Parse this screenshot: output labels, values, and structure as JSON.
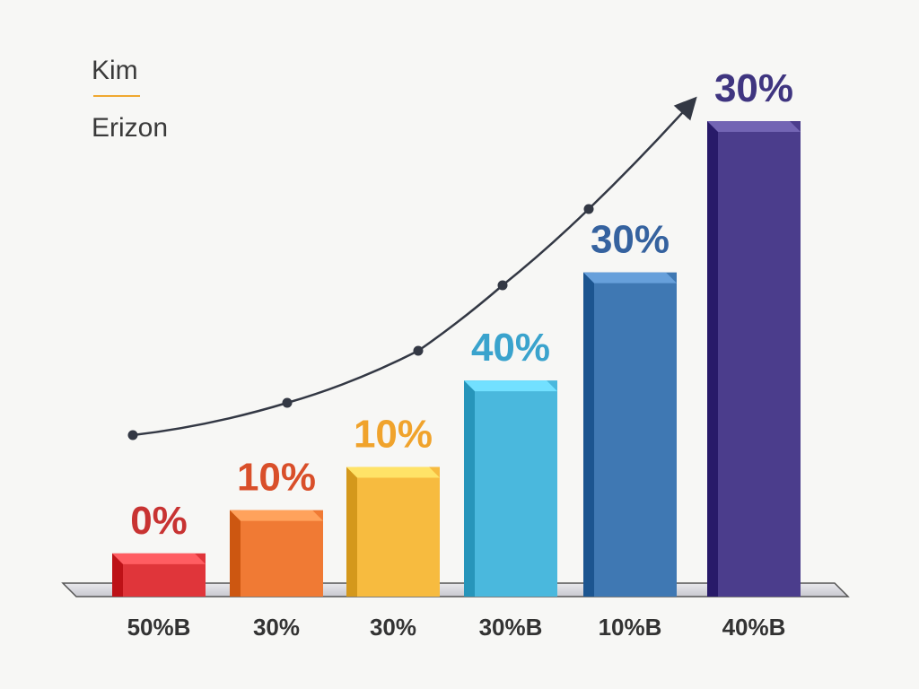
{
  "chart_data": {
    "type": "bar",
    "legend": [
      "Kim",
      "Erizon"
    ],
    "legend_placement": "top-left",
    "categories": [
      "50%B",
      "30%",
      "30%",
      "30%B",
      "10%B",
      "40%B"
    ],
    "values": [
      10,
      20,
      30,
      50,
      75,
      110
    ],
    "data_labels": [
      "0%",
      "10%",
      "10%",
      "40%",
      "30%",
      "30%"
    ],
    "ylim": [
      0,
      120
    ],
    "grid": false,
    "trend_line": {
      "values": [
        38,
        45,
        58,
        75,
        93,
        116
      ],
      "arrow": true
    },
    "colors": {
      "bars": [
        "#e0353a",
        "#f07a34",
        "#f7bb3f",
        "#4ab8dd",
        "#3f78b3",
        "#4b3d8c"
      ],
      "labels": [
        "#c83332",
        "#d94f2a",
        "#f0a32c",
        "#3aa3cd",
        "#35629f",
        "#3f3580"
      ],
      "trend": "#333844",
      "legend_divider": "#f0a830"
    }
  }
}
